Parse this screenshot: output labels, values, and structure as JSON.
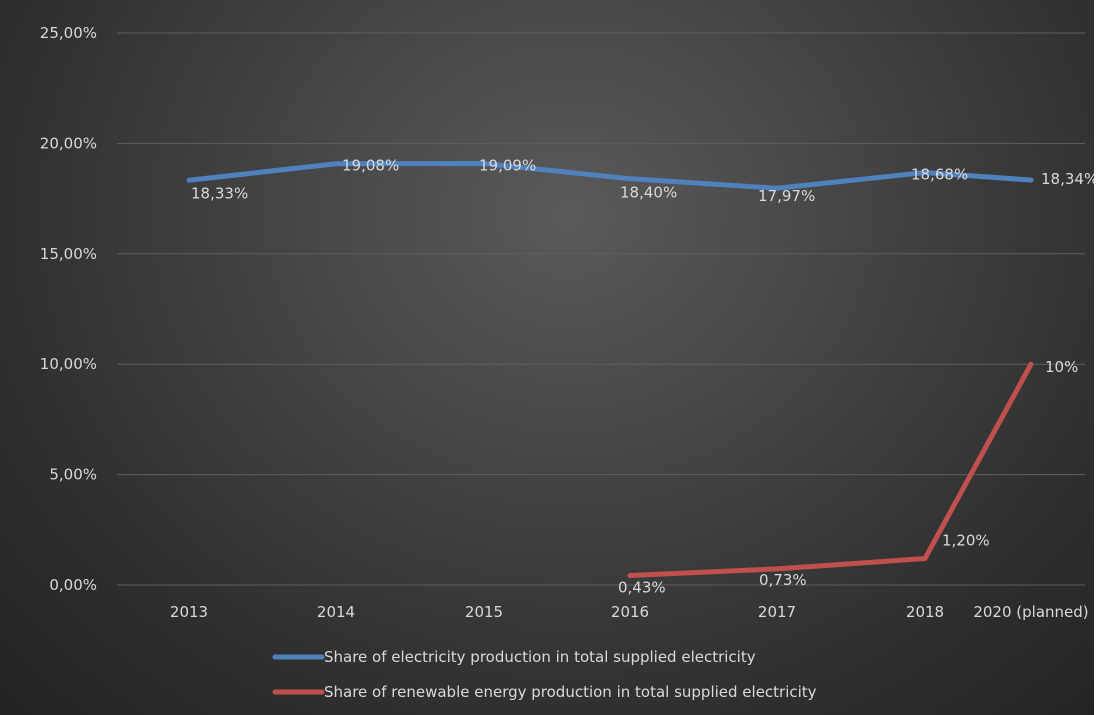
{
  "chart_data": {
    "type": "line",
    "title": "",
    "xlabel": "",
    "ylabel": "",
    "categories": [
      "2013",
      "2014",
      "2015",
      "2016",
      "2017",
      "2018",
      "2020 (planned)"
    ],
    "ylim": [
      0,
      25
    ],
    "y_ticks": [
      "0,00%",
      "5,00%",
      "10,00%",
      "15,00%",
      "20,00%",
      "25,00%"
    ],
    "grid": true,
    "legend_position": "bottom",
    "series": [
      {
        "name": "Share of electricity production in total supplied electricity",
        "color": "#4f81bd",
        "values": [
          18.33,
          19.08,
          19.09,
          18.4,
          17.97,
          18.68,
          18.34
        ],
        "labels": [
          "18,33%",
          "19,08%",
          "19,09%",
          "18,40%",
          "17,97%",
          "18,68%",
          "18,34%"
        ]
      },
      {
        "name": "Share of renewable energy production in total supplied electricity",
        "color": "#c0504d",
        "values": [
          null,
          null,
          null,
          0.43,
          0.73,
          1.2,
          10
        ],
        "labels": [
          "",
          "",
          "",
          "0,43%",
          "0,73%",
          "1,20%",
          "10%"
        ]
      }
    ]
  }
}
